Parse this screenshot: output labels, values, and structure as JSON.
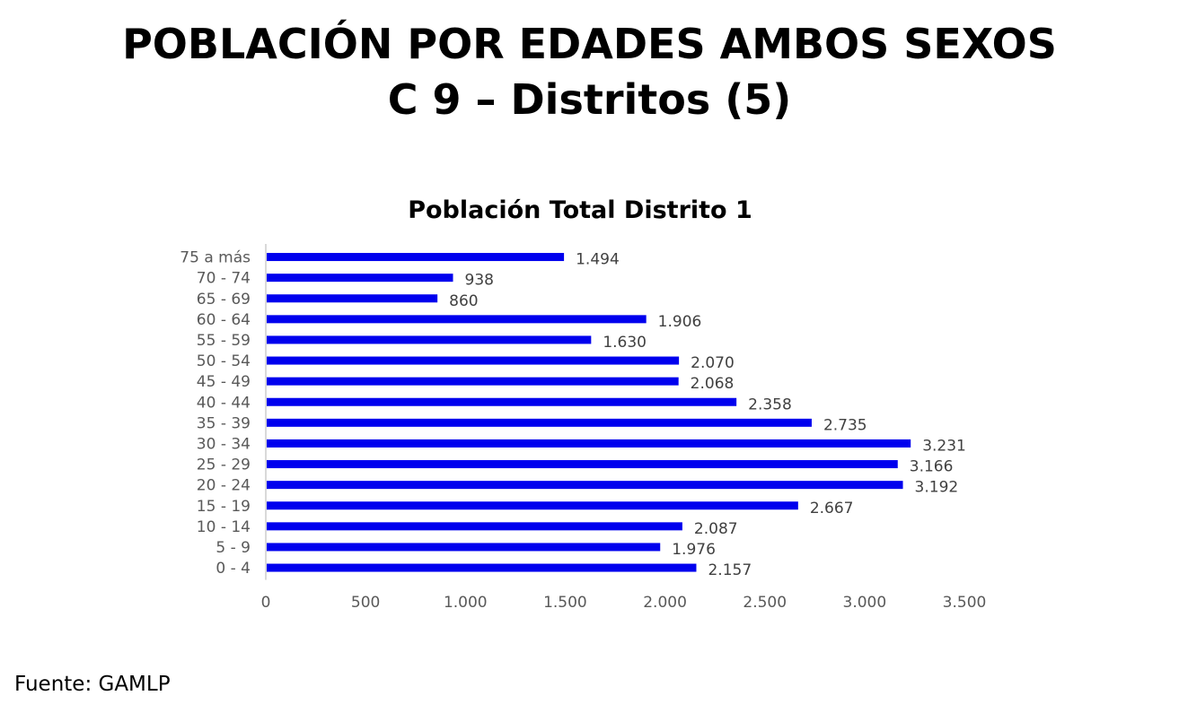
{
  "slide": {
    "title_line1": "POBLACIÓN POR EDADES AMBOS SEXOS",
    "title_line2": "C 9 – Distritos (5)",
    "source": "Fuente: GAMLP"
  },
  "chart_data": {
    "type": "bar",
    "orientation": "horizontal",
    "title": "Población Total Distrito 1",
    "categories": [
      "75 a más",
      "70 - 74",
      "65 - 69",
      "60 - 64",
      "55 - 59",
      "50 - 54",
      "45 - 49",
      "40 - 44",
      "35 - 39",
      "30 - 34",
      "25 - 29",
      "20 - 24",
      "15 - 19",
      "10 - 14",
      "5 - 9",
      "0 - 4"
    ],
    "values": [
      1494,
      938,
      860,
      1906,
      1630,
      2070,
      2068,
      2358,
      2735,
      3231,
      3166,
      3192,
      2667,
      2087,
      1976,
      2157
    ],
    "value_labels": [
      "1.494",
      "938",
      "860",
      "1.906",
      "1.630",
      "2.070",
      "2.068",
      "2.358",
      "2.735",
      "3.231",
      "3.166",
      "3.192",
      "2.667",
      "2.087",
      "1.976",
      "2.157"
    ],
    "x_ticks": [
      0,
      500,
      1000,
      1500,
      2000,
      2500,
      3000,
      3500
    ],
    "x_tick_labels": [
      "0",
      "500",
      "1.000",
      "1.500",
      "2.000",
      "2.500",
      "3.000",
      "3.500"
    ],
    "xlim": [
      0,
      3500
    ],
    "xlabel": "",
    "ylabel": "",
    "grid": false,
    "legend": "none",
    "colors": {
      "bar": "#0000ee",
      "axis": "#d9d9d9",
      "tick_text": "#595959",
      "label_text": "#404040"
    }
  }
}
